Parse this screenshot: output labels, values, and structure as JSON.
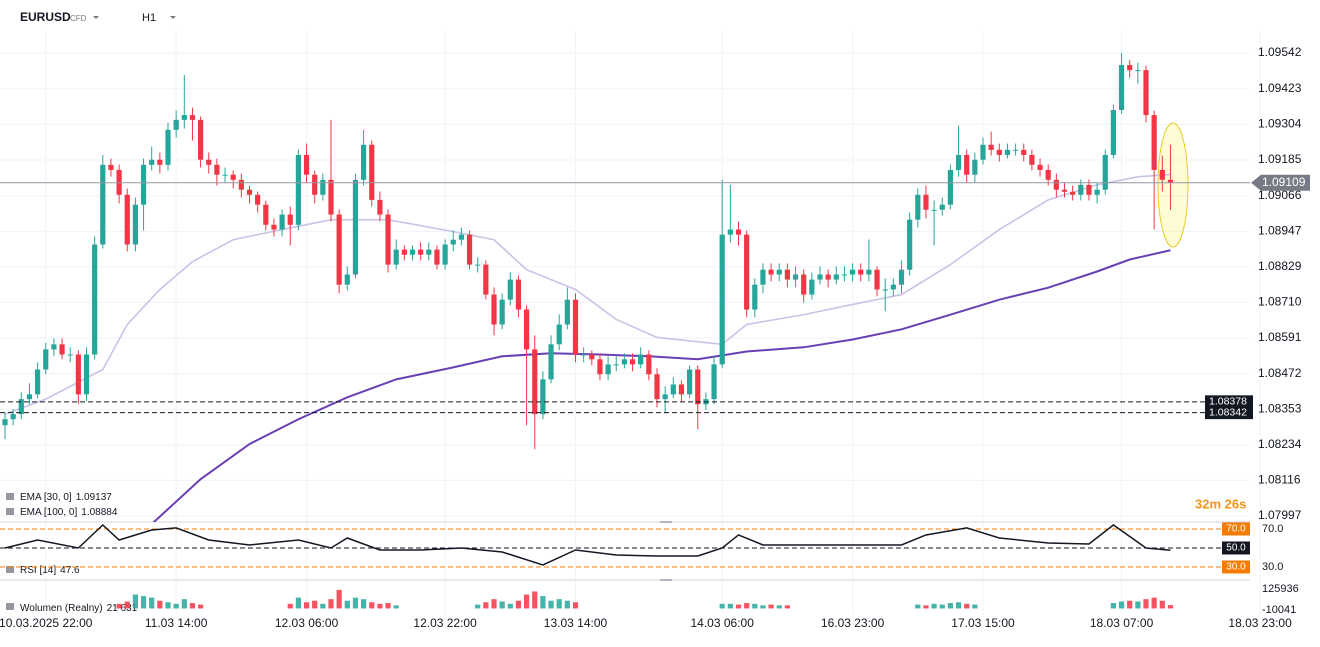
{
  "chart_data": {
    "type": "candlestick",
    "symbol": "EURUSD",
    "instrument": "CFD",
    "interval": "H1",
    "up_color": "#26a69a",
    "down_color": "#f23645",
    "ylim": [
      1.07977,
      1.09659
    ],
    "yticks": [
      1.09542,
      1.09423,
      1.09304,
      1.09185,
      1.09066,
      1.08947,
      1.08829,
      {
        "value": 1.0871,
        "label": "1.08710"
      },
      1.08591,
      1.08472,
      1.08353,
      1.08234,
      1.08116,
      1.07997
    ],
    "grid": true,
    "x_labels": [
      {
        "index": 5,
        "label": "10.03.2025  22:00"
      },
      {
        "index": 21,
        "label": "11.03  14:00"
      },
      {
        "index": 37,
        "label": "12.03  06:00"
      },
      {
        "index": 54,
        "label": "12.03  22:00"
      },
      {
        "index": 70,
        "label": "13.03  14:00"
      },
      {
        "index": 88,
        "label": "14.03  06:00"
      },
      {
        "index": 104,
        "label": "16.03  23:00"
      },
      {
        "index": 120,
        "label": "17.03  15:00"
      },
      {
        "index": 137,
        "label": "18.03  07:00"
      },
      {
        "index": 154,
        "label": "18.03  23:00"
      }
    ],
    "open": [
      1.083,
      1.0832,
      1.08337,
      1.08387,
      1.08403,
      1.08486,
      1.08553,
      1.0857,
      1.08536,
      1.08536,
      1.08403,
      1.08536,
      1.08903,
      1.09169,
      1.09152,
      1.09069,
      1.08903,
      1.09036,
      1.09169,
      1.09186,
      1.09169,
      1.09286,
      1.09319,
      1.09335,
      1.09319,
      1.09186,
      1.09169,
      1.09136,
      1.09136,
      1.09119,
      1.09086,
      1.09069,
      1.09036,
      1.08969,
      1.08953,
      1.09003,
      1.08969,
      1.09202,
      1.09136,
      1.09069,
      1.09119,
      1.09003,
      1.08769,
      1.08803,
      1.09119,
      1.09236,
      1.09052,
      1.09003,
      1.08836,
      1.08886,
      1.08869,
      1.08886,
      1.08869,
      1.08886,
      1.08836,
      1.08903,
      1.08919,
      1.08936,
      1.08836,
      1.08836,
      1.08736,
      1.08636,
      1.08719,
      1.08786,
      1.08686,
      1.08553,
      1.08337,
      1.08453,
      1.0857,
      1.08636,
      1.08719,
      1.08536,
      1.08536,
      1.0852,
      1.0847,
      1.08503,
      1.08503,
      1.0852,
      1.08503,
      1.08536,
      1.0847,
      1.08387,
      1.08403,
      1.08436,
      1.08403,
      1.08486,
      1.0837,
      1.08387,
      1.08503,
      1.08936,
      1.08953,
      1.08936,
      1.08686,
      1.08769,
      1.08819,
      1.08803,
      1.08819,
      1.08786,
      1.08803,
      1.08736,
      1.08786,
      1.08803,
      1.08786,
      1.08803,
      1.08803,
      1.08819,
      1.08803,
      1.08819,
      1.08753,
      1.08753,
      1.08769,
      1.08819,
      1.08986,
      1.09069,
      1.09019,
      1.09019,
      1.09036,
      1.09152,
      1.09202,
      1.09136,
      1.09186,
      1.09236,
      1.09219,
      1.09202,
      1.09219,
      1.09219,
      1.09202,
      1.09169,
      1.09152,
      1.09119,
      1.09086,
      1.09079,
      1.09069,
      1.09102,
      1.09069,
      1.09086,
      1.09202,
      1.09352,
      1.09502,
      1.09485,
      1.09485,
      1.09335,
      1.09152,
      1.09119
    ],
    "high": [
      1.0834,
      1.08353,
      1.0841,
      1.0844,
      1.0851,
      1.08575,
      1.0859,
      1.0859,
      1.0856,
      1.0855,
      1.0856,
      1.0893,
      1.09202,
      1.0919,
      1.0917,
      1.0909,
      1.0906,
      1.0919,
      1.0923,
      1.0921,
      1.0931,
      1.0935,
      1.09469,
      1.0936,
      1.0933,
      1.0921,
      1.0919,
      1.0916,
      1.0915,
      1.0914,
      1.091,
      1.0908,
      1.0905,
      1.0899,
      1.0902,
      1.0903,
      1.0922,
      1.0924,
      1.0915,
      1.0914,
      1.09319,
      1.0902,
      1.0883,
      1.0914,
      1.09286,
      1.0925,
      1.0908,
      1.0902,
      1.0892,
      1.089,
      1.089,
      1.0891,
      1.0891,
      1.089,
      1.0892,
      1.0895,
      1.0896,
      1.0895,
      1.0886,
      1.0885,
      1.0876,
      1.0874,
      1.0881,
      1.088,
      1.087,
      1.086,
      1.0848,
      1.086,
      1.0867,
      1.0876,
      1.0874,
      1.0856,
      1.0855,
      1.0854,
      1.0853,
      1.0853,
      1.0854,
      1.0854,
      1.0856,
      1.0855,
      1.0849,
      1.0843,
      1.0846,
      1.0845,
      1.085,
      1.085,
      1.0841,
      1.0853,
      1.09119,
      1.09102,
      1.0898,
      1.0895,
      1.0879,
      1.0884,
      1.0884,
      1.0884,
      1.0884,
      1.0883,
      1.0882,
      1.0881,
      1.0883,
      1.0882,
      1.0883,
      1.0883,
      1.0884,
      1.0884,
      1.0892,
      1.0883,
      1.0879,
      1.0879,
      1.0885,
      1.0901,
      1.0909,
      1.091,
      1.0905,
      1.0906,
      1.0917,
      1.093,
      1.0922,
      1.0921,
      1.0926,
      1.0928,
      1.0924,
      1.0924,
      1.0924,
      1.0924,
      1.0922,
      1.0919,
      1.0917,
      1.0914,
      1.0911,
      1.091,
      1.0912,
      1.0912,
      1.0911,
      1.0922,
      1.0937,
      1.09542,
      1.09519,
      1.0951,
      1.095,
      1.0935,
      1.092,
      1.09236
    ],
    "low": [
      1.08253,
      1.083,
      1.0832,
      1.0837,
      1.0839,
      1.0847,
      1.0853,
      1.0852,
      1.0851,
      1.0837,
      1.0838,
      1.0852,
      1.0889,
      1.0913,
      1.0904,
      1.0888,
      1.0888,
      1.0895,
      1.0915,
      1.0914,
      1.0915,
      1.0926,
      1.0929,
      1.0925,
      1.0916,
      1.0914,
      1.091,
      1.0911,
      1.0909,
      1.0906,
      1.0904,
      1.0901,
      1.0895,
      1.0893,
      1.0893,
      1.089,
      1.0895,
      1.0911,
      1.0904,
      1.0905,
      1.0898,
      1.0874,
      1.0875,
      1.0879,
      1.091,
      1.0903,
      1.0898,
      1.0881,
      1.0882,
      1.0885,
      1.0885,
      1.0885,
      1.0885,
      1.0882,
      1.0882,
      1.0888,
      1.089,
      1.0882,
      1.0881,
      1.0872,
      1.086,
      1.0862,
      1.087,
      1.0866,
      1.083,
      1.0822,
      1.0832,
      1.0844,
      1.0855,
      1.0862,
      1.0851,
      1.0851,
      1.085,
      1.0845,
      1.0845,
      1.0848,
      1.0849,
      1.0848,
      1.0849,
      1.0845,
      1.0836,
      1.0834,
      1.0839,
      1.0838,
      1.0839,
      1.08287,
      1.0835,
      1.0837,
      1.0849,
      1.0891,
      1.089,
      1.0866,
      1.0866,
      1.0874,
      1.0878,
      1.0878,
      1.0876,
      1.0876,
      1.0871,
      1.0872,
      1.0877,
      1.0876,
      1.0877,
      1.0878,
      1.0878,
      1.0878,
      1.0878,
      1.0873,
      1.0868,
      1.0873,
      1.0874,
      1.088,
      1.0896,
      1.0899,
      1.089,
      1.09,
      1.0902,
      1.0913,
      1.0911,
      1.0911,
      1.0917,
      1.092,
      1.0918,
      1.0919,
      1.092,
      1.0918,
      1.0915,
      1.0913,
      1.091,
      1.0906,
      1.0906,
      1.0905,
      1.0905,
      1.0905,
      1.0904,
      1.0907,
      1.0919,
      1.0934,
      1.0946,
      1.0944,
      1.0931,
      1.08953,
      1.0908,
      1.09019
    ],
    "close": [
      1.0832,
      1.08337,
      1.08387,
      1.08403,
      1.08486,
      1.08553,
      1.0857,
      1.08536,
      1.08536,
      1.08403,
      1.08536,
      1.08903,
      1.09169,
      1.09152,
      1.09069,
      1.08903,
      1.09036,
      1.09169,
      1.09186,
      1.09169,
      1.09286,
      1.09319,
      1.09335,
      1.09319,
      1.09186,
      1.09169,
      1.09136,
      1.09136,
      1.09119,
      1.09086,
      1.09069,
      1.09036,
      1.08969,
      1.08953,
      1.09003,
      1.08969,
      1.09202,
      1.09136,
      1.09069,
      1.09119,
      1.09003,
      1.08769,
      1.08803,
      1.09119,
      1.09236,
      1.09052,
      1.09003,
      1.08836,
      1.08886,
      1.08869,
      1.08886,
      1.08869,
      1.08886,
      1.08836,
      1.08903,
      1.08919,
      1.08936,
      1.08836,
      1.08836,
      1.08736,
      1.08636,
      1.08719,
      1.08786,
      1.08686,
      1.08553,
      1.08337,
      1.08453,
      1.0857,
      1.08636,
      1.08719,
      1.08536,
      1.08536,
      1.0852,
      1.0847,
      1.08503,
      1.08503,
      1.0852,
      1.08503,
      1.08536,
      1.0847,
      1.08387,
      1.08403,
      1.08436,
      1.08403,
      1.08486,
      1.0837,
      1.08387,
      1.08503,
      1.08936,
      1.08953,
      1.08936,
      1.08686,
      1.08769,
      1.08819,
      1.08803,
      1.08819,
      1.08786,
      1.08803,
      1.08736,
      1.08786,
      1.08803,
      1.08786,
      1.08803,
      1.08803,
      1.08819,
      1.08803,
      1.08819,
      1.08753,
      1.08753,
      1.08769,
      1.08819,
      1.08986,
      1.09069,
      1.09019,
      1.09019,
      1.09036,
      1.09152,
      1.09202,
      1.09136,
      1.09186,
      1.09236,
      1.09219,
      1.09202,
      1.09219,
      1.09219,
      1.09202,
      1.09169,
      1.09152,
      1.09119,
      1.09086,
      1.09079,
      1.09069,
      1.09102,
      1.09069,
      1.09086,
      1.09202,
      1.09352,
      1.09502,
      1.09485,
      1.09485,
      1.09335,
      1.09152,
      1.09119,
      1.09109
    ],
    "current_price": 1.09109,
    "countdown": "32m 26s",
    "levels": [
      1.08378,
      1.08342
    ],
    "ema": [
      {
        "name": "EMA [30, 0]",
        "last": 1.09137,
        "color": "#c9c3e6",
        "x": [
          0,
          5,
          12,
          15,
          19,
          23,
          28,
          34,
          40,
          47,
          55,
          60,
          64,
          70,
          75,
          80,
          88,
          91,
          98,
          104,
          110,
          116,
          122,
          128,
          134,
          139,
          143
        ],
        "values": [
          1.08337,
          1.08387,
          1.08486,
          1.08636,
          1.08753,
          1.08846,
          1.08919,
          1.08953,
          1.08986,
          1.08986,
          1.08946,
          1.08919,
          1.08819,
          1.08753,
          1.08653,
          1.08593,
          1.0857,
          1.08636,
          1.08669,
          1.08703,
          1.08736,
          1.08836,
          1.08953,
          1.09052,
          1.09102,
          1.09129,
          1.09137
        ]
      },
      {
        "name": "EMA [100, 0]",
        "last": 1.08884,
        "color": "#6a3fb5",
        "x": [
          18,
          24,
          30,
          36,
          42,
          48,
          55,
          61,
          67,
          73,
          79,
          85,
          91,
          98,
          104,
          110,
          116,
          122,
          128,
          134,
          138,
          143
        ],
        "values": [
          1.0797,
          1.0812,
          1.08237,
          1.0832,
          1.08393,
          1.08453,
          1.08493,
          1.0853,
          1.0854,
          1.08536,
          1.0853,
          1.0852,
          1.08546,
          1.0856,
          1.08586,
          1.0862,
          1.08669,
          1.08719,
          1.08759,
          1.08813,
          1.08853,
          1.08884
        ]
      }
    ],
    "rsi": {
      "name": "RSI [14]",
      "last": 47.6,
      "color": "#131722",
      "ylim": [
        16.3,
        76.3
      ],
      "x": [
        0,
        4,
        9,
        12,
        14,
        18,
        21,
        25,
        30,
        36,
        40,
        42,
        46,
        51,
        56,
        61,
        66,
        70,
        75,
        80,
        85,
        88,
        90,
        93,
        98,
        104,
        110,
        113,
        118,
        122,
        128,
        133,
        136,
        140,
        143
      ],
      "values": [
        50.0,
        58.4,
        50.0,
        74.2,
        58.4,
        68.9,
        71.1,
        58.4,
        53.2,
        58.4,
        50.0,
        60.5,
        47.9,
        47.9,
        50.0,
        45.8,
        32.1,
        47.9,
        42.6,
        41.6,
        41.6,
        50.0,
        63.7,
        53.2,
        53.2,
        53.2,
        53.2,
        63.7,
        71.1,
        60.5,
        55.3,
        54.2,
        74.2,
        50.0,
        47.6
      ],
      "levels": [
        {
          "value": 70,
          "label": "70.0"
        },
        {
          "value": 50,
          "label": "50.0"
        },
        {
          "value": 30,
          "label": "30.0"
        }
      ],
      "ticks": [
        {
          "value": 70,
          "label": "70.0"
        },
        {
          "value": 30,
          "label": "30.0"
        }
      ]
    },
    "volume": {
      "name": "Wolumen (Realny)",
      "last_label": "21 631",
      "ylim": [
        -42416,
        171261
      ],
      "ticks": [
        125936,
        -10041
      ],
      "values": [
        null,
        null,
        null,
        null,
        null,
        null,
        null,
        null,
        null,
        null,
        null,
        null,
        null,
        null,
        30000,
        45000,
        90000,
        80000,
        70000,
        50000,
        40000,
        30000,
        60000,
        35000,
        25000,
        null,
        null,
        null,
        null,
        null,
        null,
        null,
        null,
        null,
        null,
        30000,
        70000,
        40000,
        50000,
        30000,
        60000,
        120000,
        50000,
        70000,
        60000,
        40000,
        30000,
        35000,
        20000,
        null,
        null,
        null,
        null,
        null,
        null,
        null,
        null,
        null,
        25000,
        40000,
        60000,
        45000,
        30000,
        50000,
        90000,
        110000,
        80000,
        50000,
        60000,
        50000,
        40000,
        null,
        null,
        null,
        null,
        null,
        null,
        null,
        null,
        null,
        null,
        null,
        null,
        null,
        null,
        null,
        null,
        null,
        30000,
        30000,
        25000,
        35000,
        30000,
        20000,
        25000,
        20000,
        20000,
        null,
        null,
        null,
        null,
        null,
        null,
        null,
        null,
        null,
        null,
        null,
        null,
        null,
        null,
        null,
        25000,
        20000,
        30000,
        25000,
        35000,
        40000,
        30000,
        25000,
        null,
        null,
        null,
        null,
        null,
        null,
        null,
        null,
        null,
        null,
        null,
        null,
        null,
        null,
        null,
        null,
        35000,
        45000,
        50000,
        45000,
        60000,
        70000,
        50000,
        21631
      ]
    }
  }
}
